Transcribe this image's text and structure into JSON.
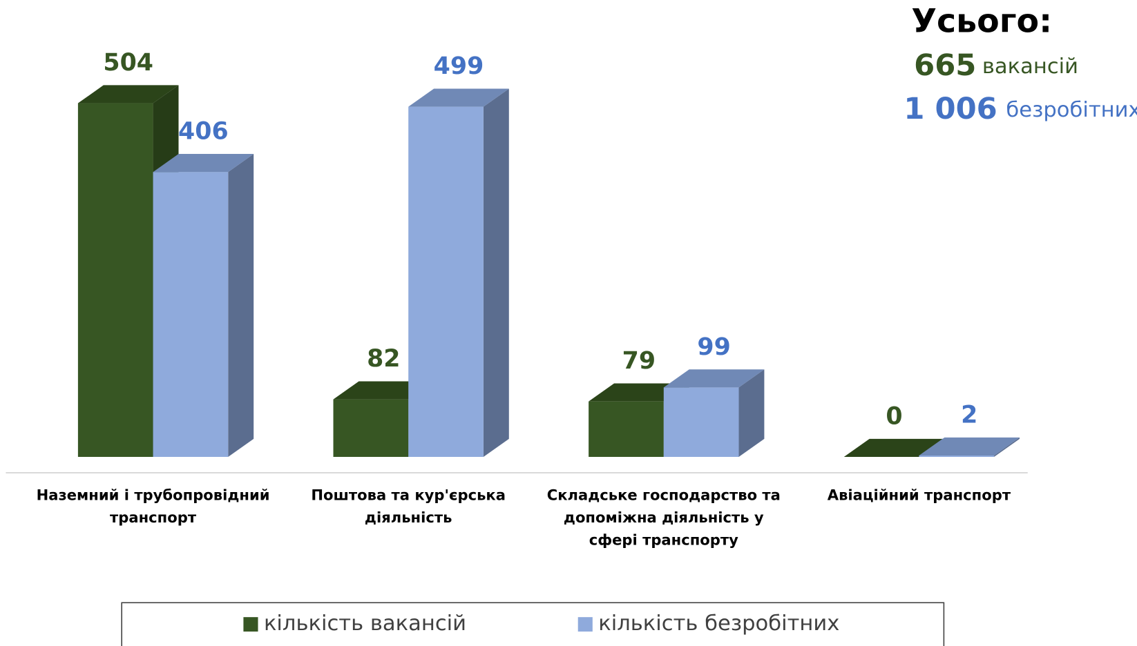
{
  "chart_data": {
    "type": "bar3d",
    "categories": [
      "Наземний і трубопровідний транспорт",
      "Поштова та кур'єрська діяльність",
      "Складське господарство та допоміжна діяльність у сфері транспорту",
      "Авіаційний транспорт"
    ],
    "series": [
      {
        "name": "кількість вакансій",
        "color": "#375623",
        "top_color": "#2b4419",
        "side_color": "#263c17",
        "label_color": "#375623",
        "values": [
          504,
          82,
          79,
          0
        ]
      },
      {
        "name": "кількість безробітних",
        "color": "#8faadc",
        "top_color": "#7089b6",
        "side_color": "#5b6d8f",
        "label_color": "#4472c4",
        "values": [
          406,
          499,
          99,
          2
        ]
      }
    ],
    "legend": "bottom",
    "totals": {
      "title": "Усього:",
      "items": [
        {
          "value": 665,
          "unit": "вакансій"
        },
        {
          "value": {
            "value": 1006,
            "label": "1 006"
          },
          "unit": "безробітних"
        }
      ]
    }
  }
}
